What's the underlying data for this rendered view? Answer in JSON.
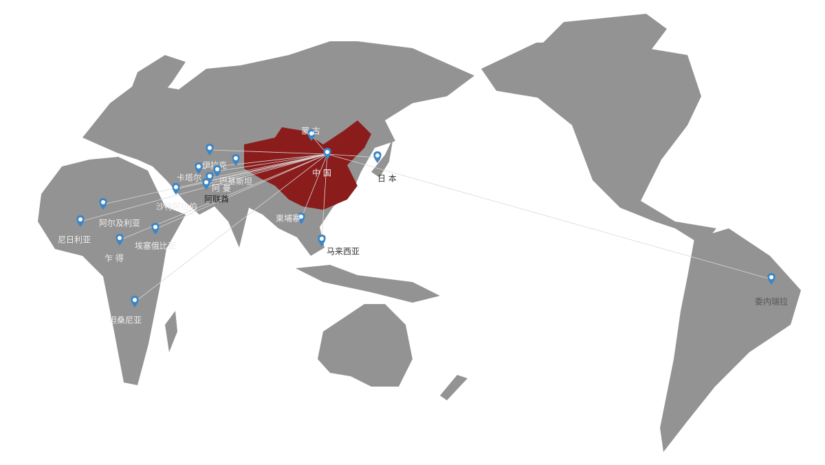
{
  "nodes": [
    {
      "label": "中 国"
    },
    {
      "label": "蒙 古"
    },
    {
      "label": "日 本"
    },
    {
      "label": "伊拉克"
    },
    {
      "label": "卡塔尔"
    },
    {
      "label": "巴基斯坦"
    },
    {
      "label": "阿 曼"
    },
    {
      "label": "阿联酋"
    },
    {
      "label": "沙特阿拉伯"
    },
    {
      "label": "阿尔及利亚"
    },
    {
      "label": "尼日利亚"
    },
    {
      "label": "乍 得"
    },
    {
      "label": "埃塞俄比亚"
    },
    {
      "label": "坦桑尼亚"
    },
    {
      "label": "柬埔寨"
    },
    {
      "label": "马来西亚"
    },
    {
      "label": "委内瑞拉"
    }
  ]
}
